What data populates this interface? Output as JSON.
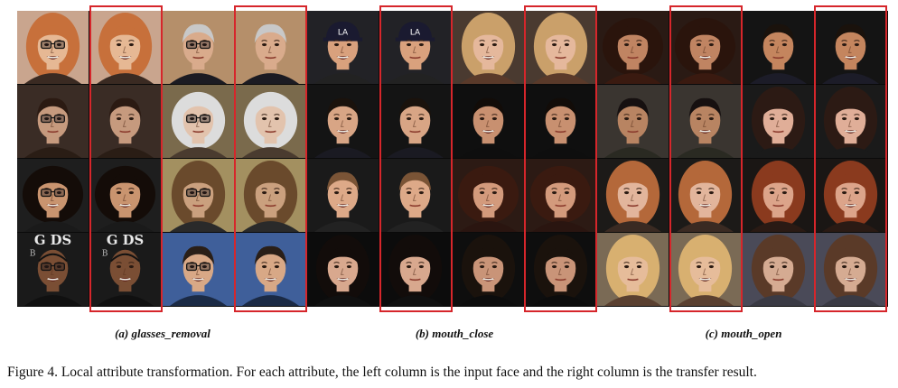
{
  "panels": [
    {
      "label": "(a) glasses_removal"
    },
    {
      "label": "(b) mouth_close"
    },
    {
      "label": "(c) mouth_open"
    }
  ],
  "caption": "Figure 4. Local attribute transformation. For each attribute, the left column is the input face and the right column is the transfer result.",
  "colors": {
    "highlight": "#d6262b",
    "strip_background": "#0a0a0a"
  },
  "image_text": {
    "poster_letters": "G  DS",
    "poster_sub": "B"
  }
}
